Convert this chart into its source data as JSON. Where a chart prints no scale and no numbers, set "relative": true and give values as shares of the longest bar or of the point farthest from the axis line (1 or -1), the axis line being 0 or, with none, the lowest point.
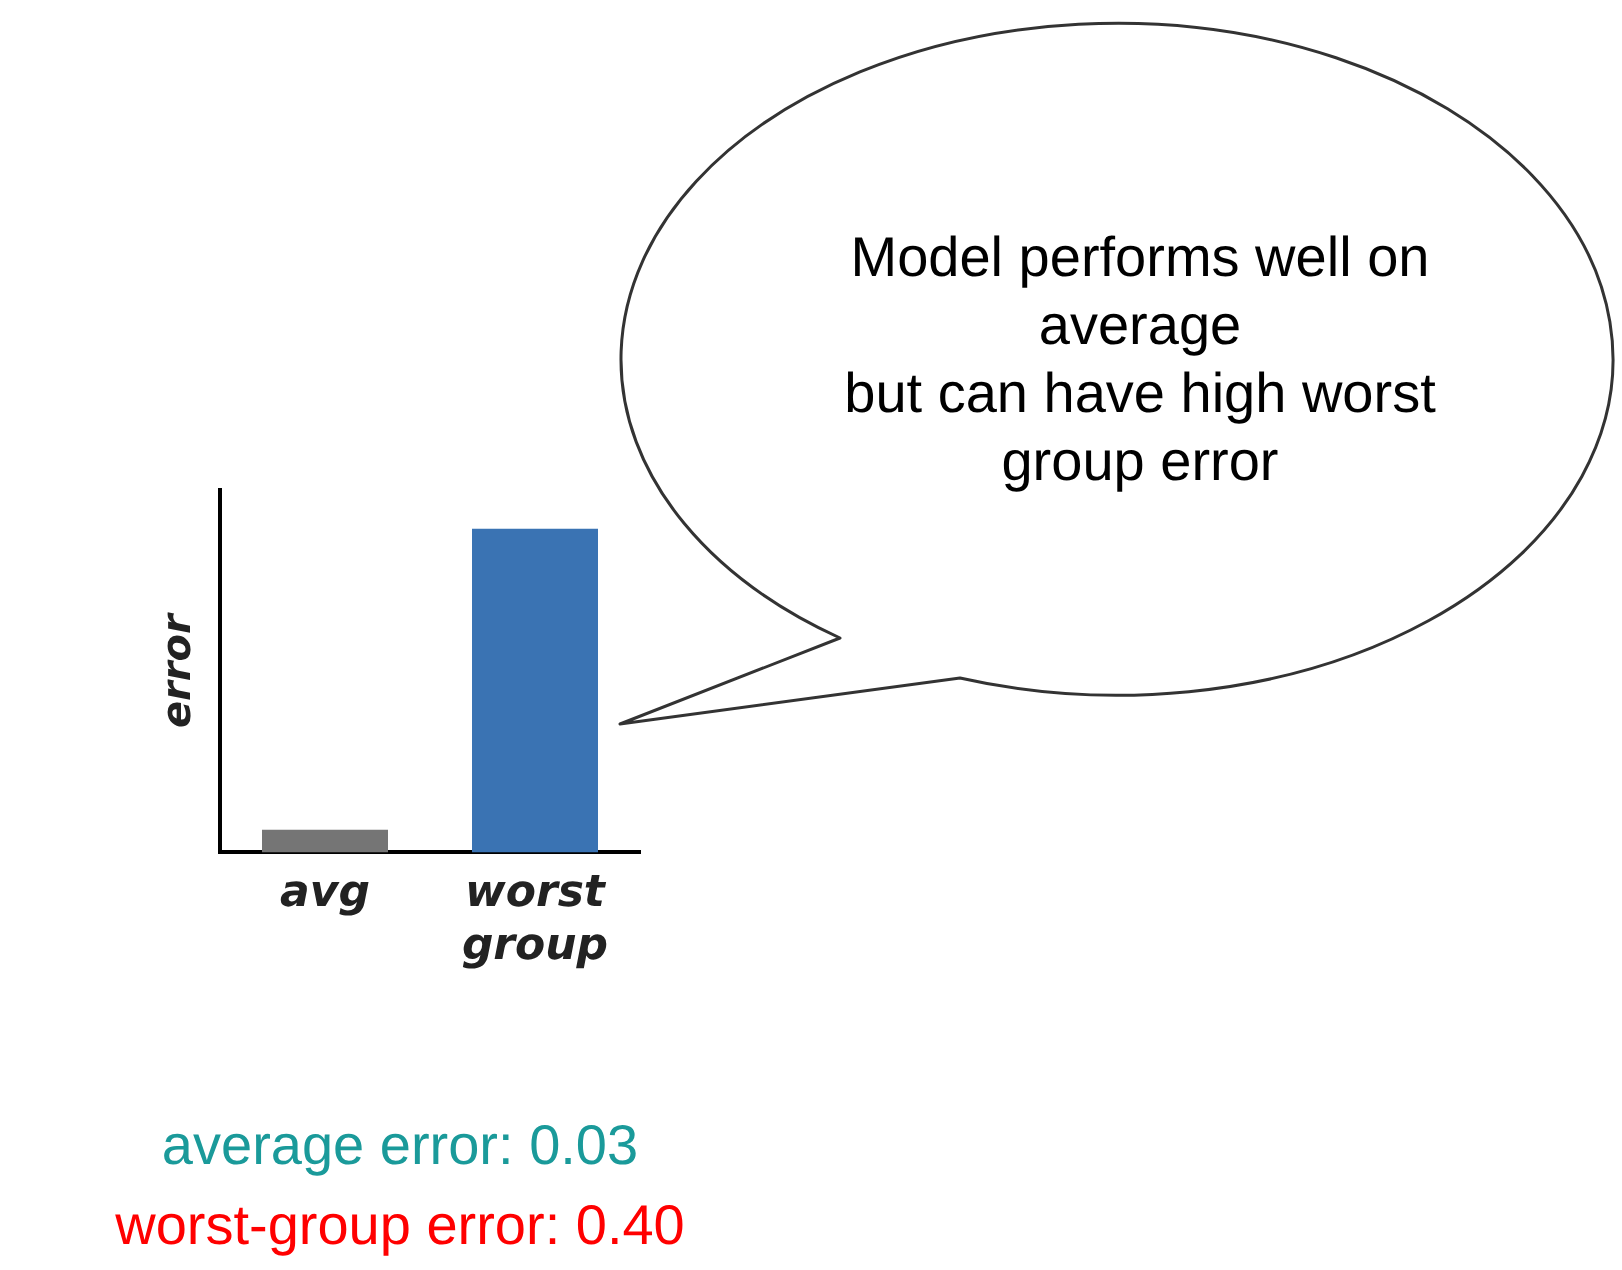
{
  "chart_data": {
    "type": "bar",
    "relative": true,
    "ylabel": "error",
    "categories": [
      "avg",
      "worst group"
    ],
    "values": [
      0.07,
      1
    ],
    "colors": [
      "#757575",
      "#3a73b3"
    ],
    "grid": false,
    "legend": false,
    "annotations": [
      "Model performs well on\naverage\nbut can have high worst\ngroup error",
      "average error: 0.03",
      "worst-group error: 0.40"
    ]
  }
}
